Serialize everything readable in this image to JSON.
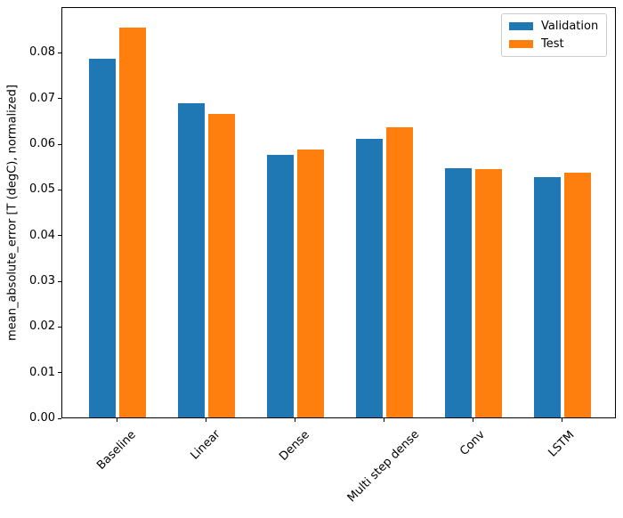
{
  "chart_data": {
    "type": "bar",
    "categories": [
      "Baseline",
      "Linear",
      "Dense",
      "Multi step dense",
      "Conv",
      "LSTM"
    ],
    "series": [
      {
        "name": "Validation",
        "color": "#1f77b4",
        "values": [
          0.0785,
          0.0688,
          0.0574,
          0.0609,
          0.0546,
          0.0527
        ]
      },
      {
        "name": "Test",
        "color": "#ff7f0e",
        "values": [
          0.0853,
          0.0665,
          0.0586,
          0.0636,
          0.0544,
          0.0535
        ]
      }
    ],
    "title": "",
    "xlabel": "",
    "ylabel": "mean_absolute_error [T (degC), normalized]",
    "ylim": [
      0,
      0.09
    ],
    "yticks": [
      0.0,
      0.01,
      0.02,
      0.03,
      0.04,
      0.05,
      0.06,
      0.07,
      0.08
    ],
    "ytick_labels": [
      "0.00",
      "0.01",
      "0.02",
      "0.03",
      "0.04",
      "0.05",
      "0.06",
      "0.07",
      "0.08"
    ],
    "xtick_rotation": 45,
    "grid": false,
    "legend_position": "upper right",
    "spine_color": "#000000",
    "legend_border_color": "#cccccc"
  }
}
